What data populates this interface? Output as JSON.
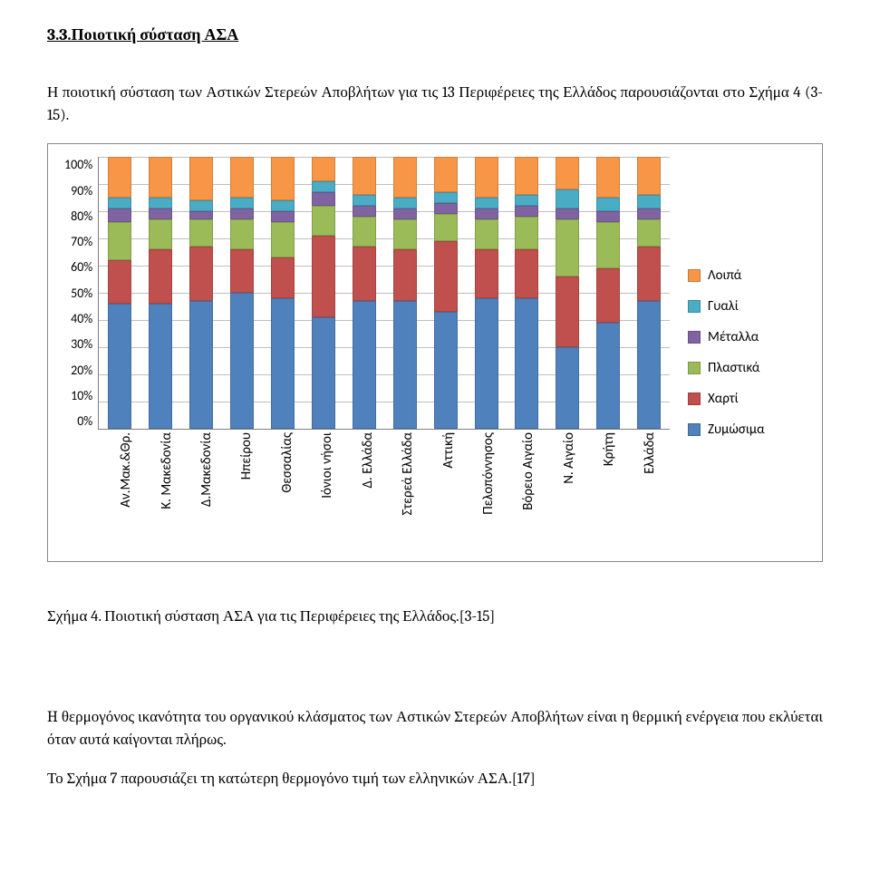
{
  "heading": "3.3.Ποιοτική σύσταση ΑΣΑ",
  "intro": "Η ποιοτική σύσταση των Αστικών Στερεών Αποβλήτων για τις 13 Περιφέρειες της Ελλάδος παρουσιάζονται στο Σχήμα 4 (3-15).",
  "caption": "Σχήμα 4. Ποιοτική σύσταση ΑΣΑ για τις Περιφέρειες της Ελλάδος.[3-15]",
  "para2": "H θερμογόνος ικανότητα του οργανικού κλάσματος των Αστικών Στερεών Αποβλήτων είναι η θερμική ενέργεια που εκλύεται όταν αυτά καίγονται πλήρως.",
  "para3": "Το Σχήμα 7  παρουσιάζει τη κατώτερη θερμογόνο τιμή των ελληνικών ΑΣΑ.[17]",
  "chart": {
    "type": "stacked-bar",
    "y_ticks": [
      "0%",
      "10%",
      "20%",
      "30%",
      "40%",
      "50%",
      "60%",
      "70%",
      "80%",
      "90%",
      "100%"
    ],
    "series_order_bottom_to_top": [
      "zymosima",
      "xarti",
      "plastika",
      "metalla",
      "gyali",
      "loipa"
    ],
    "colors": {
      "loipa": "#f79646",
      "gyali": "#4bacc6",
      "metalla": "#8064a2",
      "plastika": "#9bbb59",
      "xarti": "#c0504d",
      "zymosima": "#4f81bd"
    },
    "legend": [
      {
        "key": "loipa",
        "label": "Λοιπά"
      },
      {
        "key": "gyali",
        "label": "Γυαλί"
      },
      {
        "key": "metalla",
        "label": "Μέταλλα"
      },
      {
        "key": "plastika",
        "label": "Πλαστικά"
      },
      {
        "key": "xarti",
        "label": "Χαρτί"
      },
      {
        "key": "zymosima",
        "label": "Ζυμώσιμα"
      }
    ],
    "categories": [
      {
        "label": "Αν.Μακ.&Θρ.",
        "values": {
          "zymosima": 46,
          "xarti": 16,
          "plastika": 14,
          "metalla": 5,
          "gyali": 4,
          "loipa": 15
        }
      },
      {
        "label": "Κ. Μακεδονία",
        "values": {
          "zymosima": 46,
          "xarti": 20,
          "plastika": 11,
          "metalla": 4,
          "gyali": 4,
          "loipa": 15
        }
      },
      {
        "label": "Δ.Μακεδονία",
        "values": {
          "zymosima": 47,
          "xarti": 20,
          "plastika": 10,
          "metalla": 3,
          "gyali": 4,
          "loipa": 16
        }
      },
      {
        "label": "Ηπείρου",
        "values": {
          "zymosima": 50,
          "xarti": 16,
          "plastika": 11,
          "metalla": 4,
          "gyali": 4,
          "loipa": 15
        }
      },
      {
        "label": "Θεσσαλίας",
        "values": {
          "zymosima": 48,
          "xarti": 15,
          "plastika": 13,
          "metalla": 4,
          "gyali": 4,
          "loipa": 16
        }
      },
      {
        "label": "Ιόνιοι νήσοι",
        "values": {
          "zymosima": 41,
          "xarti": 30,
          "plastika": 11,
          "metalla": 5,
          "gyali": 4,
          "loipa": 9
        }
      },
      {
        "label": "Δ. Ελλάδα",
        "values": {
          "zymosima": 47,
          "xarti": 20,
          "plastika": 11,
          "metalla": 4,
          "gyali": 4,
          "loipa": 14
        }
      },
      {
        "label": "Στερεά Ελλάδα",
        "values": {
          "zymosima": 47,
          "xarti": 19,
          "plastika": 11,
          "metalla": 4,
          "gyali": 4,
          "loipa": 15
        }
      },
      {
        "label": "Αττική",
        "values": {
          "zymosima": 43,
          "xarti": 26,
          "plastika": 10,
          "metalla": 4,
          "gyali": 4,
          "loipa": 13
        }
      },
      {
        "label": "Πελοπόννησος",
        "values": {
          "zymosima": 48,
          "xarti": 18,
          "plastika": 11,
          "metalla": 4,
          "gyali": 4,
          "loipa": 15
        }
      },
      {
        "label": "Βόρειο Αιγαίο",
        "values": {
          "zymosima": 48,
          "xarti": 18,
          "plastika": 12,
          "metalla": 4,
          "gyali": 4,
          "loipa": 14
        }
      },
      {
        "label": "Ν. Αιγαίο",
        "values": {
          "zymosima": 30,
          "xarti": 26,
          "plastika": 21,
          "metalla": 4,
          "gyali": 7,
          "loipa": 12
        }
      },
      {
        "label": "Κρήτη",
        "values": {
          "zymosima": 39,
          "xarti": 20,
          "plastika": 17,
          "metalla": 4,
          "gyali": 5,
          "loipa": 15
        }
      },
      {
        "label": "Ελλάδα",
        "values": {
          "zymosima": 47,
          "xarti": 20,
          "plastika": 10,
          "metalla": 4,
          "gyali": 5,
          "loipa": 14
        }
      }
    ]
  }
}
